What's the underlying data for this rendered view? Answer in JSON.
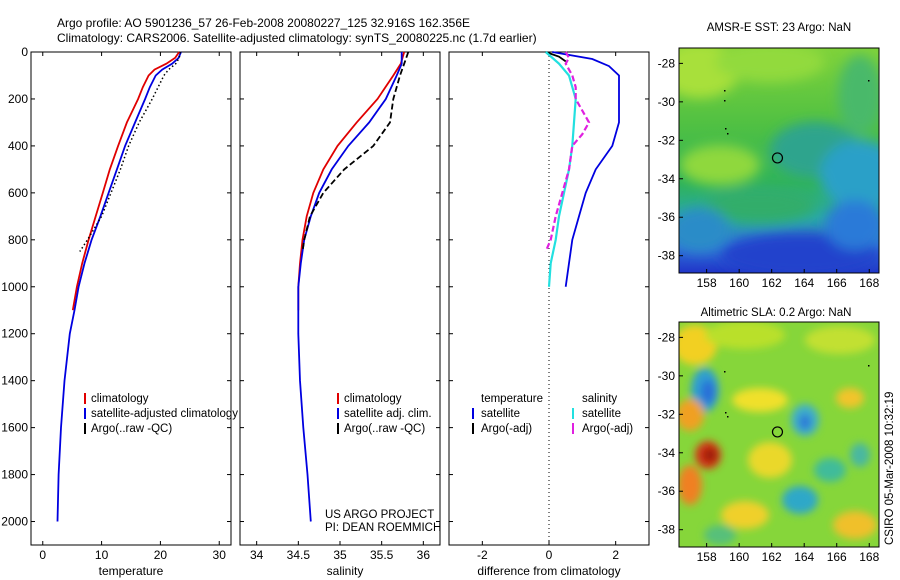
{
  "header": {
    "line1": "Argo profile: AO 5901236_57 26-Feb-2008 20080227_125 32.916S 162.356E",
    "line2": "Climatology: CARS2006. Satellite-adjusted climatology: synTS_20080225.nc (1.7d earlier)"
  },
  "footer": {
    "project": "US ARGO PROJECT",
    "pi": "PI: DEAN ROEMMICH",
    "stamp": "CSIRO 05-Mar-2008 10:32:19"
  },
  "colors": {
    "red": "#e00000",
    "blue": "#0000e0",
    "black": "#000000",
    "cyan": "#22e0e0",
    "magenta": "#e020e0"
  },
  "chart_data": [
    {
      "type": "line",
      "id": "temperature",
      "xlabel": "temperature",
      "ylabel": "",
      "xlim": [
        -2,
        32
      ],
      "ylim": [
        2100,
        0
      ],
      "xticks": [
        0,
        10,
        20,
        30
      ],
      "yticks": [
        0,
        200,
        400,
        600,
        800,
        1000,
        1200,
        1400,
        1600,
        1800,
        2000
      ],
      "legend": [
        "climatology",
        "satellite-adjusted climatology",
        "Argo(..raw -QC)"
      ],
      "series": [
        {
          "name": "climatology",
          "color": "red",
          "depth": [
            0,
            25,
            50,
            75,
            100,
            150,
            200,
            300,
            400,
            500,
            600,
            700,
            800,
            900,
            1000,
            1100
          ],
          "values": [
            23.2,
            22.5,
            21.0,
            19.0,
            18.0,
            17.0,
            16.2,
            14.3,
            12.8,
            11.4,
            10.2,
            9.0,
            7.8,
            6.7,
            5.8,
            5.1
          ]
        },
        {
          "name": "satellite-adjusted climatology",
          "color": "blue",
          "depth": [
            0,
            25,
            50,
            75,
            100,
            150,
            200,
            300,
            400,
            500,
            600,
            700,
            800,
            900,
            1000,
            1100,
            1200,
            1400,
            1600,
            1800,
            2000
          ],
          "values": [
            23.5,
            23.1,
            22.0,
            20.3,
            19.2,
            18.2,
            17.4,
            15.7,
            14.0,
            12.6,
            11.2,
            9.8,
            8.3,
            7.1,
            6.1,
            5.4,
            4.6,
            3.7,
            3.1,
            2.7,
            2.5
          ]
        },
        {
          "name": "Argo(..raw -QC)",
          "color": "black",
          "style": "dotted",
          "depth": [
            0,
            25,
            50,
            75,
            100,
            150,
            200,
            300,
            400,
            500,
            600,
            700,
            800,
            850
          ],
          "values": [
            23.4,
            23.2,
            22.6,
            21.4,
            20.6,
            19.6,
            18.6,
            16.4,
            14.6,
            13.2,
            11.6,
            10.0,
            7.6,
            6.3
          ]
        }
      ]
    },
    {
      "type": "line",
      "id": "salinity",
      "xlabel": "salinity",
      "ylabel": "",
      "xlim": [
        33.8,
        36.2
      ],
      "ylim": [
        2100,
        0
      ],
      "xticks": [
        34,
        34.5,
        35,
        35.5,
        36
      ],
      "legend": [
        "climatology",
        "satellite adj. clim.",
        "Argo(..raw -QC)"
      ],
      "series": [
        {
          "name": "climatology",
          "color": "red",
          "depth": [
            0,
            50,
            100,
            200,
            300,
            400,
            500,
            600,
            700,
            800,
            900,
            1000,
            1100
          ],
          "values": [
            35.77,
            35.73,
            35.64,
            35.45,
            35.2,
            34.97,
            34.8,
            34.68,
            34.6,
            34.55,
            34.52,
            34.5,
            34.5
          ]
        },
        {
          "name": "satellite adj. clim.",
          "color": "blue",
          "depth": [
            0,
            50,
            100,
            200,
            300,
            400,
            500,
            600,
            700,
            800,
            900,
            1000,
            1100,
            1200,
            1400,
            1600,
            1800,
            2000
          ],
          "values": [
            35.74,
            35.74,
            35.68,
            35.55,
            35.35,
            35.1,
            34.9,
            34.75,
            34.65,
            34.57,
            34.53,
            34.5,
            34.5,
            34.5,
            34.52,
            34.56,
            34.61,
            34.65
          ]
        },
        {
          "name": "Argo(..raw -QC)",
          "color": "black",
          "style": "dashed",
          "depth": [
            0,
            40,
            100,
            200,
            300,
            400,
            500,
            600,
            700,
            800,
            850
          ],
          "values": [
            35.82,
            35.78,
            35.72,
            35.64,
            35.6,
            35.4,
            35.05,
            34.8,
            34.64,
            34.57,
            34.55
          ]
        }
      ]
    },
    {
      "type": "line",
      "id": "difference",
      "xlabel": "difference from climatology",
      "ylabel": "",
      "xlim": [
        -3,
        3
      ],
      "ylim": [
        2100,
        0
      ],
      "xticks": [
        -2,
        0,
        2
      ],
      "legend": [
        "temperature",
        "satellite",
        "Argo(-adj)",
        "salinity",
        "satellite",
        "Argo(-adj)"
      ],
      "legend_groups": {
        "temperature": "temperature",
        "salinity": "salinity"
      },
      "series": [
        {
          "name": "temperature satellite",
          "color": "blue",
          "depth": [
            0,
            30,
            60,
            100,
            150,
            200,
            300,
            400,
            500,
            600,
            700,
            800,
            900,
            1000
          ],
          "values": [
            0.1,
            1.3,
            1.8,
            2.1,
            2.1,
            2.1,
            2.1,
            1.9,
            1.4,
            1.1,
            0.9,
            0.7,
            0.6,
            0.5
          ]
        },
        {
          "name": "temperature Argo(-adj)",
          "color": "black",
          "depth": [
            0,
            20,
            40
          ],
          "values": [
            -0.1,
            0.3,
            0.5
          ]
        },
        {
          "name": "salinity satellite",
          "color": "cyan",
          "depth": [
            0,
            50,
            100,
            200,
            300,
            400,
            500,
            600,
            700,
            800,
            900,
            1000
          ],
          "values": [
            -0.1,
            0.3,
            0.6,
            0.8,
            0.75,
            0.7,
            0.6,
            0.45,
            0.3,
            0.2,
            0.05,
            0.0
          ]
        },
        {
          "name": "salinity Argo(-adj)",
          "color": "magenta",
          "style": "dashed",
          "depth": [
            0,
            25,
            50,
            100,
            150,
            200,
            300,
            350,
            400,
            500,
            600,
            700,
            800,
            850
          ],
          "values": [
            0.5,
            0.6,
            0.5,
            0.7,
            0.8,
            0.8,
            1.2,
            1.0,
            0.7,
            0.6,
            0.4,
            0.2,
            0.05,
            -0.1
          ]
        }
      ]
    },
    {
      "type": "heatmap",
      "id": "sst",
      "title": "AMSR-E SST: 23 Argo: NaN",
      "xticks": [
        158,
        160,
        162,
        164,
        166,
        168
      ],
      "yticks": [
        -28,
        -30,
        -32,
        -34,
        -36,
        -38
      ],
      "xlim": [
        156.3,
        168.6
      ],
      "ylim": [
        -38.9,
        -27.2
      ],
      "marker": {
        "lon": 162.356,
        "lat": -32.916
      }
    },
    {
      "type": "heatmap",
      "id": "sla",
      "title": "Altimetric SLA: 0.2 Argo: NaN",
      "xticks": [
        158,
        160,
        162,
        164,
        166,
        168
      ],
      "yticks": [
        -28,
        -30,
        -32,
        -34,
        -36,
        -38
      ],
      "xlim": [
        156.3,
        168.6
      ],
      "ylim": [
        -38.9,
        -27.2
      ],
      "marker": {
        "lon": 162.356,
        "lat": -32.916
      }
    }
  ]
}
